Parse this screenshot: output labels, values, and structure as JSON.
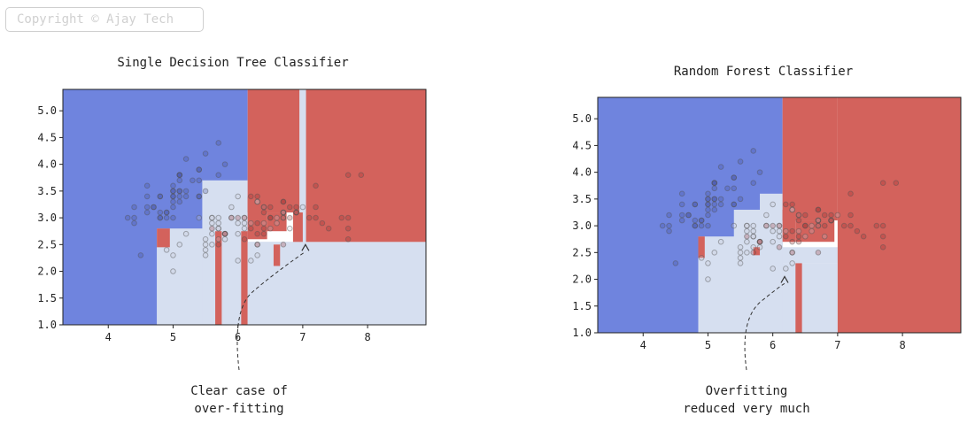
{
  "watermark": "Copyright © Ajay Tech",
  "colors": {
    "blue_region": "#6f84de",
    "white_region": "#d6dff0",
    "red_region": "#d3625c",
    "point_edge": "#555555"
  },
  "chart_data": [
    {
      "type": "heatmap",
      "title": "Single Decision Tree Classifier",
      "xlim": [
        3.3,
        8.9
      ],
      "ylim": [
        1.0,
        5.4
      ],
      "xticks": [
        "4",
        "5",
        "6",
        "7",
        "8"
      ],
      "yticks": [
        "1.0",
        "1.5",
        "2.0",
        "2.5",
        "3.0",
        "3.5",
        "4.0",
        "4.5",
        "5.0"
      ],
      "grid": false,
      "regions": [
        {
          "class": "blue",
          "x0": 3.3,
          "x1": 6.15,
          "y0": 1.0,
          "y1": 5.4
        },
        {
          "class": "white",
          "x0": 4.75,
          "x1": 8.9,
          "y0": 1.0,
          "y1": 2.45
        },
        {
          "class": "white",
          "x0": 4.75,
          "x1": 6.15,
          "y0": 1.0,
          "y1": 2.8
        },
        {
          "class": "white",
          "x0": 5.45,
          "x1": 6.15,
          "y0": 1.0,
          "y1": 3.7
        },
        {
          "class": "white",
          "x0": 5.6,
          "x1": 8.9,
          "y0": 1.0,
          "y1": 2.55
        },
        {
          "class": "red",
          "x0": 4.75,
          "x1": 4.95,
          "y0": 2.45,
          "y1": 2.8
        },
        {
          "class": "red",
          "x0": 5.65,
          "x1": 5.75,
          "y0": 1.0,
          "y1": 2.75
        },
        {
          "class": "red",
          "x0": 6.05,
          "x1": 6.15,
          "y0": 1.0,
          "y1": 2.75
        },
        {
          "class": "white",
          "x0": 6.15,
          "x1": 8.9,
          "y0": 1.0,
          "y1": 2.55
        },
        {
          "class": "red",
          "x0": 6.15,
          "x1": 6.95,
          "y0": 3.1,
          "y1": 5.4
        },
        {
          "class": "red",
          "x0": 6.15,
          "x1": 6.45,
          "y0": 2.6,
          "y1": 3.4
        },
        {
          "class": "red",
          "x0": 6.45,
          "x1": 6.75,
          "y0": 2.75,
          "y1": 3.1
        },
        {
          "class": "white",
          "x0": 6.95,
          "x1": 7.05,
          "y0": 2.55,
          "y1": 5.4
        },
        {
          "class": "red",
          "x0": 7.05,
          "x1": 8.9,
          "y0": 2.55,
          "y1": 5.4
        },
        {
          "class": "red",
          "x0": 6.55,
          "x1": 6.65,
          "y0": 2.1,
          "y1": 2.5
        },
        {
          "class": "red",
          "x0": 6.85,
          "x1": 7.0,
          "y0": 2.55,
          "y1": 3.1
        }
      ],
      "annotation": {
        "text": [
          "Clear case of",
          "over-fitting"
        ],
        "arrow_to": [
          7.0,
          2.55
        ]
      }
    },
    {
      "type": "heatmap",
      "title": "Random Forest Classifier",
      "xlim": [
        3.3,
        8.9
      ],
      "ylim": [
        1.0,
        5.4
      ],
      "xticks": [
        "4",
        "5",
        "6",
        "7",
        "8"
      ],
      "yticks": [
        "1.0",
        "1.5",
        "2.0",
        "2.5",
        "3.0",
        "3.5",
        "4.0",
        "4.5",
        "5.0"
      ],
      "grid": false,
      "regions": [
        {
          "class": "blue",
          "x0": 3.3,
          "x1": 6.15,
          "y0": 1.0,
          "y1": 5.4
        },
        {
          "class": "white",
          "x0": 4.85,
          "x1": 6.15,
          "y0": 1.0,
          "y1": 2.8
        },
        {
          "class": "white",
          "x0": 5.4,
          "x1": 6.15,
          "y0": 1.0,
          "y1": 3.3
        },
        {
          "class": "white",
          "x0": 5.8,
          "x1": 6.15,
          "y0": 1.0,
          "y1": 3.6
        },
        {
          "class": "white",
          "x0": 6.15,
          "x1": 7.0,
          "y0": 1.0,
          "y1": 2.3
        },
        {
          "class": "white",
          "x0": 6.15,
          "x1": 7.05,
          "y0": 2.3,
          "y1": 2.6
        },
        {
          "class": "red",
          "x0": 6.35,
          "x1": 6.45,
          "y0": 1.0,
          "y1": 2.3
        },
        {
          "class": "red",
          "x0": 4.85,
          "x1": 4.95,
          "y0": 2.4,
          "y1": 2.8
        },
        {
          "class": "red",
          "x0": 5.7,
          "x1": 5.8,
          "y0": 2.45,
          "y1": 2.6
        },
        {
          "class": "red",
          "x0": 6.15,
          "x1": 6.35,
          "y0": 2.7,
          "y1": 3.3
        },
        {
          "class": "red",
          "x0": 6.35,
          "x1": 6.95,
          "y0": 2.7,
          "y1": 3.1
        },
        {
          "class": "red",
          "x0": 7.0,
          "x1": 8.9,
          "y0": 1.0,
          "y1": 5.4
        },
        {
          "class": "red",
          "x0": 6.15,
          "x1": 7.0,
          "y0": 3.1,
          "y1": 5.4
        }
      ],
      "annotation": {
        "text": [
          "Overfitting",
          "reduced very much"
        ],
        "arrow_to": [
          6.1,
          2.1
        ]
      }
    }
  ],
  "points": [
    [
      5.1,
      3.5
    ],
    [
      4.9,
      3.0
    ],
    [
      4.7,
      3.2
    ],
    [
      4.6,
      3.1
    ],
    [
      5.0,
      3.6
    ],
    [
      5.4,
      3.9
    ],
    [
      4.6,
      3.4
    ],
    [
      5.0,
      3.4
    ],
    [
      4.4,
      2.9
    ],
    [
      4.9,
      3.1
    ],
    [
      5.4,
      3.7
    ],
    [
      4.8,
      3.4
    ],
    [
      4.8,
      3.0
    ],
    [
      4.3,
      3.0
    ],
    [
      5.8,
      4.0
    ],
    [
      5.7,
      4.4
    ],
    [
      5.4,
      3.9
    ],
    [
      5.1,
      3.5
    ],
    [
      5.7,
      3.8
    ],
    [
      5.1,
      3.8
    ],
    [
      5.4,
      3.4
    ],
    [
      5.1,
      3.7
    ],
    [
      4.6,
      3.6
    ],
    [
      5.1,
      3.3
    ],
    [
      4.8,
      3.4
    ],
    [
      5.0,
      3.0
    ],
    [
      5.0,
      3.4
    ],
    [
      5.2,
      3.5
    ],
    [
      5.2,
      3.4
    ],
    [
      4.7,
      3.2
    ],
    [
      4.8,
      3.1
    ],
    [
      5.4,
      3.4
    ],
    [
      5.2,
      4.1
    ],
    [
      5.5,
      4.2
    ],
    [
      4.9,
      3.1
    ],
    [
      5.0,
      3.2
    ],
    [
      5.5,
      3.5
    ],
    [
      4.4,
      3.0
    ],
    [
      5.1,
      3.4
    ],
    [
      5.0,
      3.5
    ],
    [
      4.5,
      2.3
    ],
    [
      4.4,
      3.2
    ],
    [
      5.0,
      3.5
    ],
    [
      5.1,
      3.8
    ],
    [
      4.8,
      3.0
    ],
    [
      5.1,
      3.8
    ],
    [
      4.6,
      3.2
    ],
    [
      5.3,
      3.7
    ],
    [
      5.0,
      3.3
    ],
    [
      7.0,
      3.2
    ],
    [
      6.4,
      3.2
    ],
    [
      6.9,
      3.1
    ],
    [
      5.5,
      2.3
    ],
    [
      6.5,
      2.8
    ],
    [
      5.7,
      2.8
    ],
    [
      6.3,
      3.3
    ],
    [
      4.9,
      2.4
    ],
    [
      6.6,
      2.9
    ],
    [
      5.2,
      2.7
    ],
    [
      5.0,
      2.0
    ],
    [
      5.9,
      3.0
    ],
    [
      6.0,
      2.2
    ],
    [
      6.1,
      2.9
    ],
    [
      5.6,
      2.9
    ],
    [
      6.7,
      3.1
    ],
    [
      5.6,
      3.0
    ],
    [
      5.8,
      2.7
    ],
    [
      6.2,
      2.2
    ],
    [
      5.6,
      2.5
    ],
    [
      5.9,
      3.2
    ],
    [
      6.1,
      2.8
    ],
    [
      6.3,
      2.5
    ],
    [
      6.4,
      2.9
    ],
    [
      6.6,
      3.0
    ],
    [
      6.8,
      2.8
    ],
    [
      6.7,
      3.0
    ],
    [
      6.0,
      2.9
    ],
    [
      5.7,
      2.6
    ],
    [
      5.5,
      2.4
    ],
    [
      5.8,
      2.7
    ],
    [
      6.0,
      2.7
    ],
    [
      5.4,
      3.0
    ],
    [
      6.0,
      3.4
    ],
    [
      6.7,
      3.1
    ],
    [
      6.3,
      2.3
    ],
    [
      5.6,
      3.0
    ],
    [
      5.5,
      2.5
    ],
    [
      5.5,
      2.6
    ],
    [
      6.1,
      3.0
    ],
    [
      5.8,
      2.6
    ],
    [
      5.0,
      2.3
    ],
    [
      5.6,
      2.7
    ],
    [
      5.7,
      3.0
    ],
    [
      5.7,
      2.9
    ],
    [
      6.2,
      2.9
    ],
    [
      5.1,
      2.5
    ],
    [
      5.7,
      2.8
    ],
    [
      6.3,
      3.3
    ],
    [
      5.8,
      2.7
    ],
    [
      7.1,
      3.0
    ],
    [
      6.3,
      2.9
    ],
    [
      6.5,
      3.0
    ],
    [
      7.6,
      3.0
    ],
    [
      7.3,
      2.9
    ],
    [
      6.7,
      2.5
    ],
    [
      7.2,
      3.6
    ],
    [
      6.5,
      3.2
    ],
    [
      6.4,
      2.7
    ],
    [
      6.8,
      3.0
    ],
    [
      5.7,
      2.5
    ],
    [
      6.4,
      3.2
    ],
    [
      7.7,
      3.8
    ],
    [
      7.7,
      2.6
    ],
    [
      6.9,
      3.2
    ],
    [
      5.6,
      2.8
    ],
    [
      7.7,
      2.8
    ],
    [
      6.3,
      2.7
    ],
    [
      6.7,
      3.3
    ],
    [
      7.2,
      3.2
    ],
    [
      6.2,
      2.8
    ],
    [
      6.1,
      3.0
    ],
    [
      7.2,
      3.0
    ],
    [
      7.4,
      2.8
    ],
    [
      7.9,
      3.8
    ],
    [
      6.4,
      2.8
    ],
    [
      6.1,
      2.6
    ],
    [
      7.7,
      3.0
    ],
    [
      6.3,
      3.4
    ],
    [
      6.4,
      3.1
    ],
    [
      6.0,
      3.0
    ],
    [
      6.9,
      3.1
    ],
    [
      6.7,
      3.1
    ],
    [
      6.9,
      3.1
    ],
    [
      5.8,
      2.7
    ],
    [
      6.8,
      3.2
    ],
    [
      6.7,
      3.3
    ],
    [
      6.7,
      3.0
    ],
    [
      6.3,
      2.5
    ],
    [
      6.5,
      3.0
    ],
    [
      6.2,
      3.4
    ],
    [
      5.9,
      3.0
    ]
  ]
}
